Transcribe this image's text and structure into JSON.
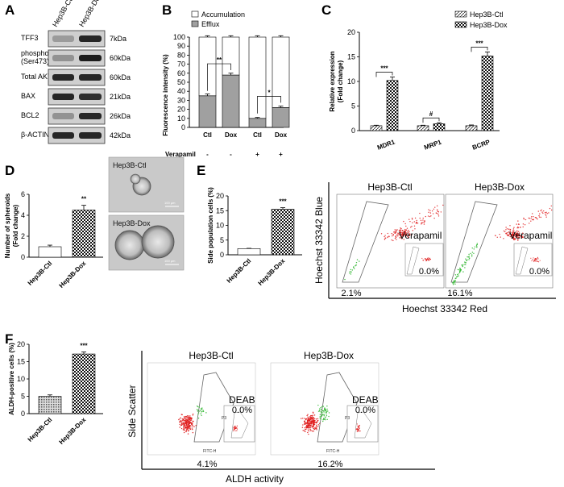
{
  "panels": {
    "A": {
      "label": "A",
      "lanes": [
        "Hep3B-Ctl",
        "Hep3B-Dox"
      ],
      "rows": [
        {
          "name": "TFF3",
          "kda": "7kDa",
          "ctl": 0.25,
          "dox": 0.9
        },
        {
          "name": "phospho-AKT\n(Ser473)",
          "kda": "60kDa",
          "ctl": 0.3,
          "dox": 0.95
        },
        {
          "name": "Total AKT",
          "kda": "60kDa",
          "ctl": 0.9,
          "dox": 0.9
        },
        {
          "name": "BAX",
          "kda": "21kDa",
          "ctl": 0.9,
          "dox": 0.85
        },
        {
          "name": "BCL2",
          "kda": "26kDa",
          "ctl": 0.3,
          "dox": 0.9
        },
        {
          "name": "β-ACTIN",
          "kda": "42kDa",
          "ctl": 0.9,
          "dox": 0.9
        }
      ]
    },
    "B": {
      "label": "B",
      "verapamil_label": "Verapamil",
      "verapamil_signs": [
        "-",
        "-",
        "+",
        "+"
      ]
    },
    "C": {
      "label": "C"
    },
    "D": {
      "label": "D",
      "micro_labels": [
        "Hep3B-Ctl",
        "Hep3B-Dox"
      ],
      "scale_bars": [
        "100 μm",
        "100 μm"
      ]
    },
    "E": {
      "label": "E",
      "plot_titles": [
        "Hep3B-Ctl",
        "Hep3B-Dox"
      ],
      "y_axis": "Hoechst 33342 Blue",
      "x_axis": "Hoechst 33342 Red",
      "inset_label": "Verapamil",
      "sp_pct": [
        "2.1%",
        "16.1%"
      ],
      "inset_pct": [
        "0.0%",
        "0.0%"
      ]
    },
    "F": {
      "label": "F",
      "plot_titles": [
        "Hep3B-Ctl",
        "Hep3B-Dox"
      ],
      "y_axis": "Side Scatter",
      "x_axis": "ALDH activity",
      "inset_label": "DEAB",
      "aldh_pct": [
        "4.1%",
        "16.2%"
      ],
      "inset_pct": [
        "0.0%",
        "0.0%"
      ],
      "gate_label": "P3",
      "fitc_label": "FITC-H"
    }
  },
  "chart_data": [
    {
      "id": "B",
      "type": "bar",
      "ylabel": "Fluorescence intensity (%)",
      "ylim": [
        0,
        100
      ],
      "yticks": [
        0,
        10,
        20,
        30,
        40,
        50,
        60,
        70,
        80,
        90,
        100
      ],
      "categories": [
        "Ctl",
        "Dox",
        "Ctl",
        "Dox"
      ],
      "stacked": true,
      "series": [
        {
          "name": "Efflux",
          "values": [
            35,
            58,
            10,
            22
          ],
          "err": [
            2,
            2,
            1,
            1.5
          ]
        },
        {
          "name": "Accumulation",
          "values": [
            65,
            42,
            90,
            78
          ],
          "err": [
            1.5,
            1.5,
            1.5,
            1.5
          ]
        }
      ],
      "legend": [
        "Accumulation",
        "Efflux"
      ],
      "significance": [
        {
          "pair": [
            0,
            1
          ],
          "label": "**"
        },
        {
          "pair": [
            2,
            3
          ],
          "label": "*"
        }
      ]
    },
    {
      "id": "C",
      "type": "bar",
      "ylabel": "Relative expression\n(Fold change)",
      "ylim": [
        0,
        20
      ],
      "yticks": [
        0,
        5,
        10,
        15,
        20
      ],
      "categories": [
        "MDR1",
        "MRP1",
        "BCRP"
      ],
      "series": [
        {
          "name": "Hep3B-Ctl",
          "values": [
            1.0,
            1.0,
            1.0
          ],
          "err": [
            0.1,
            0.1,
            0.15
          ]
        },
        {
          "name": "Hep3B-Dox",
          "values": [
            10.2,
            1.4,
            15.2
          ],
          "err": [
            0.7,
            0.2,
            0.8
          ]
        }
      ],
      "significance": [
        "***",
        "#",
        "***"
      ]
    },
    {
      "id": "D",
      "type": "bar",
      "ylabel": "Number of spheroids\n(Fold change)",
      "ylim": [
        0,
        6
      ],
      "yticks": [
        0,
        2,
        4,
        6
      ],
      "categories": [
        "Hep3B-Ctl",
        "Hep3B-Dox"
      ],
      "values": [
        1.0,
        4.5
      ],
      "err": [
        0.15,
        0.45
      ],
      "significance": "**"
    },
    {
      "id": "E",
      "type": "bar",
      "ylabel": "Side population cells (%)",
      "ylim": [
        0,
        20
      ],
      "yticks": [
        0,
        5,
        10,
        15,
        20
      ],
      "categories": [
        "Hep3B-Ctl",
        "Hep3B-Dox"
      ],
      "values": [
        2.1,
        15.5
      ],
      "err": [
        0.1,
        0.5
      ],
      "significance": "***"
    },
    {
      "id": "F",
      "type": "bar",
      "ylabel": "ALDH-positive cells (%)",
      "ylim": [
        0,
        20
      ],
      "yticks": [
        0,
        5,
        10,
        15,
        20
      ],
      "categories": [
        "Hep3B-Ctl",
        "Hep3B-Dox"
      ],
      "values": [
        5.0,
        17.2
      ],
      "err": [
        0.4,
        0.6
      ],
      "significance": "***"
    }
  ]
}
